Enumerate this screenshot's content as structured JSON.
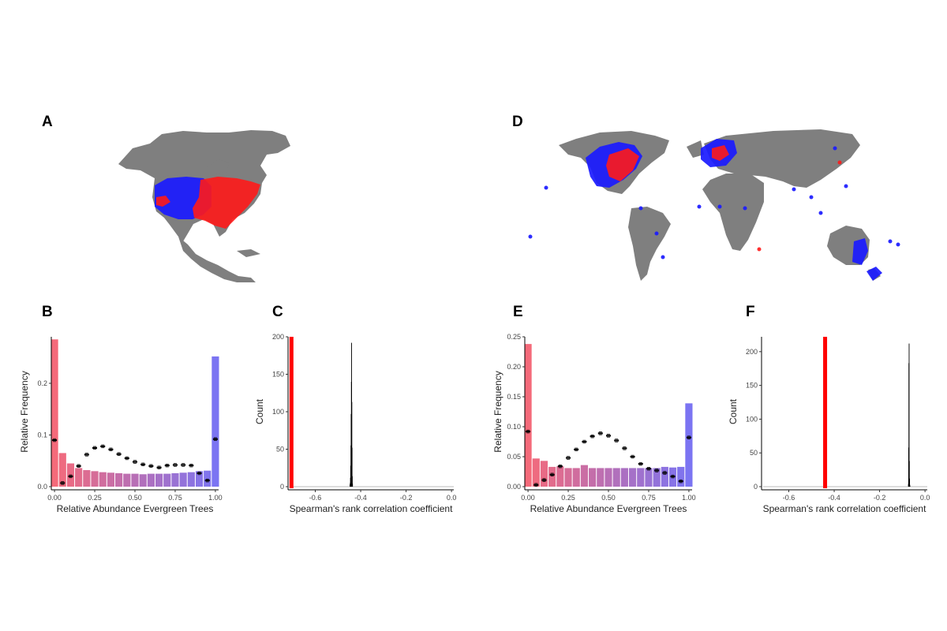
{
  "colors": {
    "map_land": "#7f7f7f",
    "site_blue": "#1a1aff",
    "site_red": "#ff1a1a",
    "hist_low": "#f46a7a",
    "hist_high": "#7b74f2",
    "observed_line": "#ff0000",
    "null_hist": "#000000"
  },
  "panels": {
    "A": {
      "label": "A"
    },
    "B": {
      "label": "B"
    },
    "C": {
      "label": "C"
    },
    "D": {
      "label": "D"
    },
    "E": {
      "label": "E"
    },
    "F": {
      "label": "F"
    }
  },
  "maps": {
    "A": {
      "region": "North America",
      "icon": "north-america-map"
    },
    "D": {
      "region": "World",
      "icon": "world-map"
    }
  },
  "chart_data": [
    {
      "panel": "B",
      "type": "bar",
      "xlabel": "Relative Abundance Evergreen Trees",
      "ylabel": "Relative Frequency",
      "xlim": [
        -0.02,
        1.02
      ],
      "ylim": [
        0,
        0.29
      ],
      "xticks": [
        "0.00",
        "0.25",
        "0.50",
        "0.75",
        "1.00"
      ],
      "xtick_values": [
        0,
        0.25,
        0.5,
        0.75,
        1.0
      ],
      "yticks": [
        "0.0",
        "0.1",
        "0.2"
      ],
      "ytick_values": [
        0,
        0.1,
        0.2
      ],
      "bin_centers": [
        0.0,
        0.05,
        0.1,
        0.15,
        0.2,
        0.25,
        0.3,
        0.35,
        0.4,
        0.45,
        0.5,
        0.55,
        0.6,
        0.65,
        0.7,
        0.75,
        0.8,
        0.85,
        0.9,
        0.95,
        1.0
      ],
      "values": [
        0.285,
        0.065,
        0.045,
        0.036,
        0.032,
        0.03,
        0.028,
        0.027,
        0.026,
        0.025,
        0.025,
        0.024,
        0.025,
        0.025,
        0.025,
        0.026,
        0.027,
        0.028,
        0.03,
        0.031,
        0.252
      ],
      "null_means": [
        0.09,
        0.007,
        0.02,
        0.04,
        0.062,
        0.075,
        0.078,
        0.072,
        0.063,
        0.055,
        0.048,
        0.043,
        0.04,
        0.037,
        0.041,
        0.042,
        0.042,
        0.041,
        0.026,
        0.012,
        0.092
      ]
    },
    {
      "panel": "C",
      "type": "bar",
      "xlabel": "Spearman's rank correlation coefficient",
      "ylabel": "Count",
      "xlim": [
        -0.72,
        0.01
      ],
      "ylim": [
        0,
        200
      ],
      "xticks": [
        "-0.6",
        "-0.4",
        "-0.2",
        "0.0"
      ],
      "xtick_values": [
        -0.6,
        -0.4,
        -0.2,
        0.0
      ],
      "yticks": [
        "0",
        "50",
        "100",
        "150",
        "200"
      ],
      "ytick_values": [
        0,
        50,
        100,
        150,
        200
      ],
      "observed_value": -0.705,
      "null_bin_centers": [
        -0.447,
        -0.446,
        -0.445,
        -0.444,
        -0.443,
        -0.442,
        -0.441,
        -0.44,
        -0.439,
        -0.438,
        -0.437,
        -0.436
      ],
      "null_counts": [
        3,
        5,
        12,
        28,
        55,
        97,
        140,
        192,
        113,
        52,
        14,
        4
      ]
    },
    {
      "panel": "E",
      "type": "bar",
      "xlabel": "Relative Abundance Evergreen Trees",
      "ylabel": "Relative Frequency",
      "xlim": [
        -0.02,
        1.02
      ],
      "ylim": [
        0,
        0.25
      ],
      "xticks": [
        "0.00",
        "0.25",
        "0.50",
        "0.75",
        "1.00"
      ],
      "xtick_values": [
        0,
        0.25,
        0.5,
        0.75,
        1.0
      ],
      "yticks": [
        "0.00",
        "0.05",
        "0.10",
        "0.15",
        "0.20",
        "0.25"
      ],
      "ytick_values": [
        0,
        0.05,
        0.1,
        0.15,
        0.2,
        0.25
      ],
      "bin_centers": [
        0.0,
        0.05,
        0.1,
        0.15,
        0.2,
        0.25,
        0.3,
        0.35,
        0.4,
        0.45,
        0.5,
        0.55,
        0.6,
        0.65,
        0.7,
        0.75,
        0.8,
        0.85,
        0.9,
        0.95,
        1.0
      ],
      "values": [
        0.238,
        0.047,
        0.043,
        0.033,
        0.034,
        0.031,
        0.031,
        0.036,
        0.031,
        0.031,
        0.031,
        0.031,
        0.031,
        0.031,
        0.031,
        0.031,
        0.031,
        0.033,
        0.032,
        0.033,
        0.139
      ],
      "null_means": [
        0.092,
        0.003,
        0.011,
        0.02,
        0.034,
        0.048,
        0.062,
        0.075,
        0.084,
        0.089,
        0.085,
        0.077,
        0.064,
        0.05,
        0.038,
        0.03,
        0.027,
        0.023,
        0.017,
        0.009,
        0.082
      ]
    },
    {
      "panel": "F",
      "type": "bar",
      "xlabel": "Spearman's rank correlation coefficient",
      "ylabel": "Count",
      "xlim": [
        -0.72,
        0.01
      ],
      "ylim": [
        0,
        222
      ],
      "xticks": [
        "-0.6",
        "-0.4",
        "-0.2",
        "0.0"
      ],
      "xtick_values": [
        -0.6,
        -0.4,
        -0.2,
        0.0
      ],
      "yticks": [
        "0",
        "50",
        "100",
        "150",
        "200"
      ],
      "ytick_values": [
        0,
        50,
        100,
        150,
        200
      ],
      "observed_value": -0.44,
      "null_bin_centers": [
        -0.073,
        -0.072,
        -0.071,
        -0.07,
        -0.069,
        -0.068,
        -0.067,
        -0.066
      ],
      "null_counts": [
        4,
        58,
        183,
        212,
        38,
        12,
        3,
        1
      ]
    }
  ]
}
